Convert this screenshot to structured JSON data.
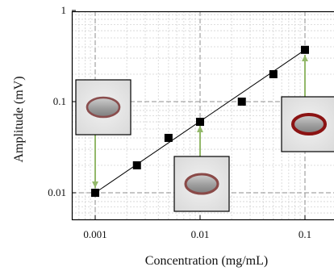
{
  "chart_data": {
    "type": "scatter",
    "xlabel": "Concentration (mg/mL)",
    "ylabel": "Amplitude (mV)",
    "x_scale": "log",
    "y_scale": "log",
    "xlim": [
      0.001,
      0.13
    ],
    "ylim": [
      0.0055,
      1
    ],
    "grid": true,
    "x_ticks": [
      {
        "value": 0.001,
        "label": "0.001"
      },
      {
        "value": 0.01,
        "label": "0.01"
      },
      {
        "value": 0.1,
        "label": "0.1"
      }
    ],
    "y_ticks": [
      {
        "value": 0.01,
        "label": "0.01"
      },
      {
        "value": 0.1,
        "label": "0.1"
      },
      {
        "value": 1,
        "label": "1"
      }
    ],
    "series": [
      {
        "marker": "square",
        "color": "#000000",
        "points": [
          {
            "x": 0.001,
            "y": 0.01
          },
          {
            "x": 0.0025,
            "y": 0.02
          },
          {
            "x": 0.005,
            "y": 0.04
          },
          {
            "x": 0.01,
            "y": 0.06
          },
          {
            "x": 0.025,
            "y": 0.1
          },
          {
            "x": 0.05,
            "y": 0.2
          },
          {
            "x": 0.1,
            "y": 0.37
          }
        ]
      }
    ],
    "fit_line": {
      "from": [
        0.001,
        0.01
      ],
      "to": [
        0.1,
        0.37
      ],
      "color": "#000000"
    },
    "insets": [
      {
        "name": "inset-low",
        "points_to": {
          "x": 0.001,
          "y": 0.01
        },
        "ring_color": "#8a4d4d",
        "ring_width": 0.14
      },
      {
        "name": "inset-mid",
        "points_to": {
          "x": 0.01,
          "y": 0.06
        },
        "ring_color": "#8a4a48",
        "ring_width": 0.2
      },
      {
        "name": "inset-high",
        "points_to": {
          "x": 0.1,
          "y": 0.37
        },
        "ring_color": "#8b1313",
        "ring_width": 0.32
      }
    ],
    "arrow_color": "#93b86a",
    "colors": {
      "axis": "#000000",
      "major_grid": "#8f8f8f",
      "minor_grid": "#d3d3d3",
      "inset_background": "#e8e8e8",
      "inset_ellipse_fill": "#9c9c9c"
    }
  }
}
